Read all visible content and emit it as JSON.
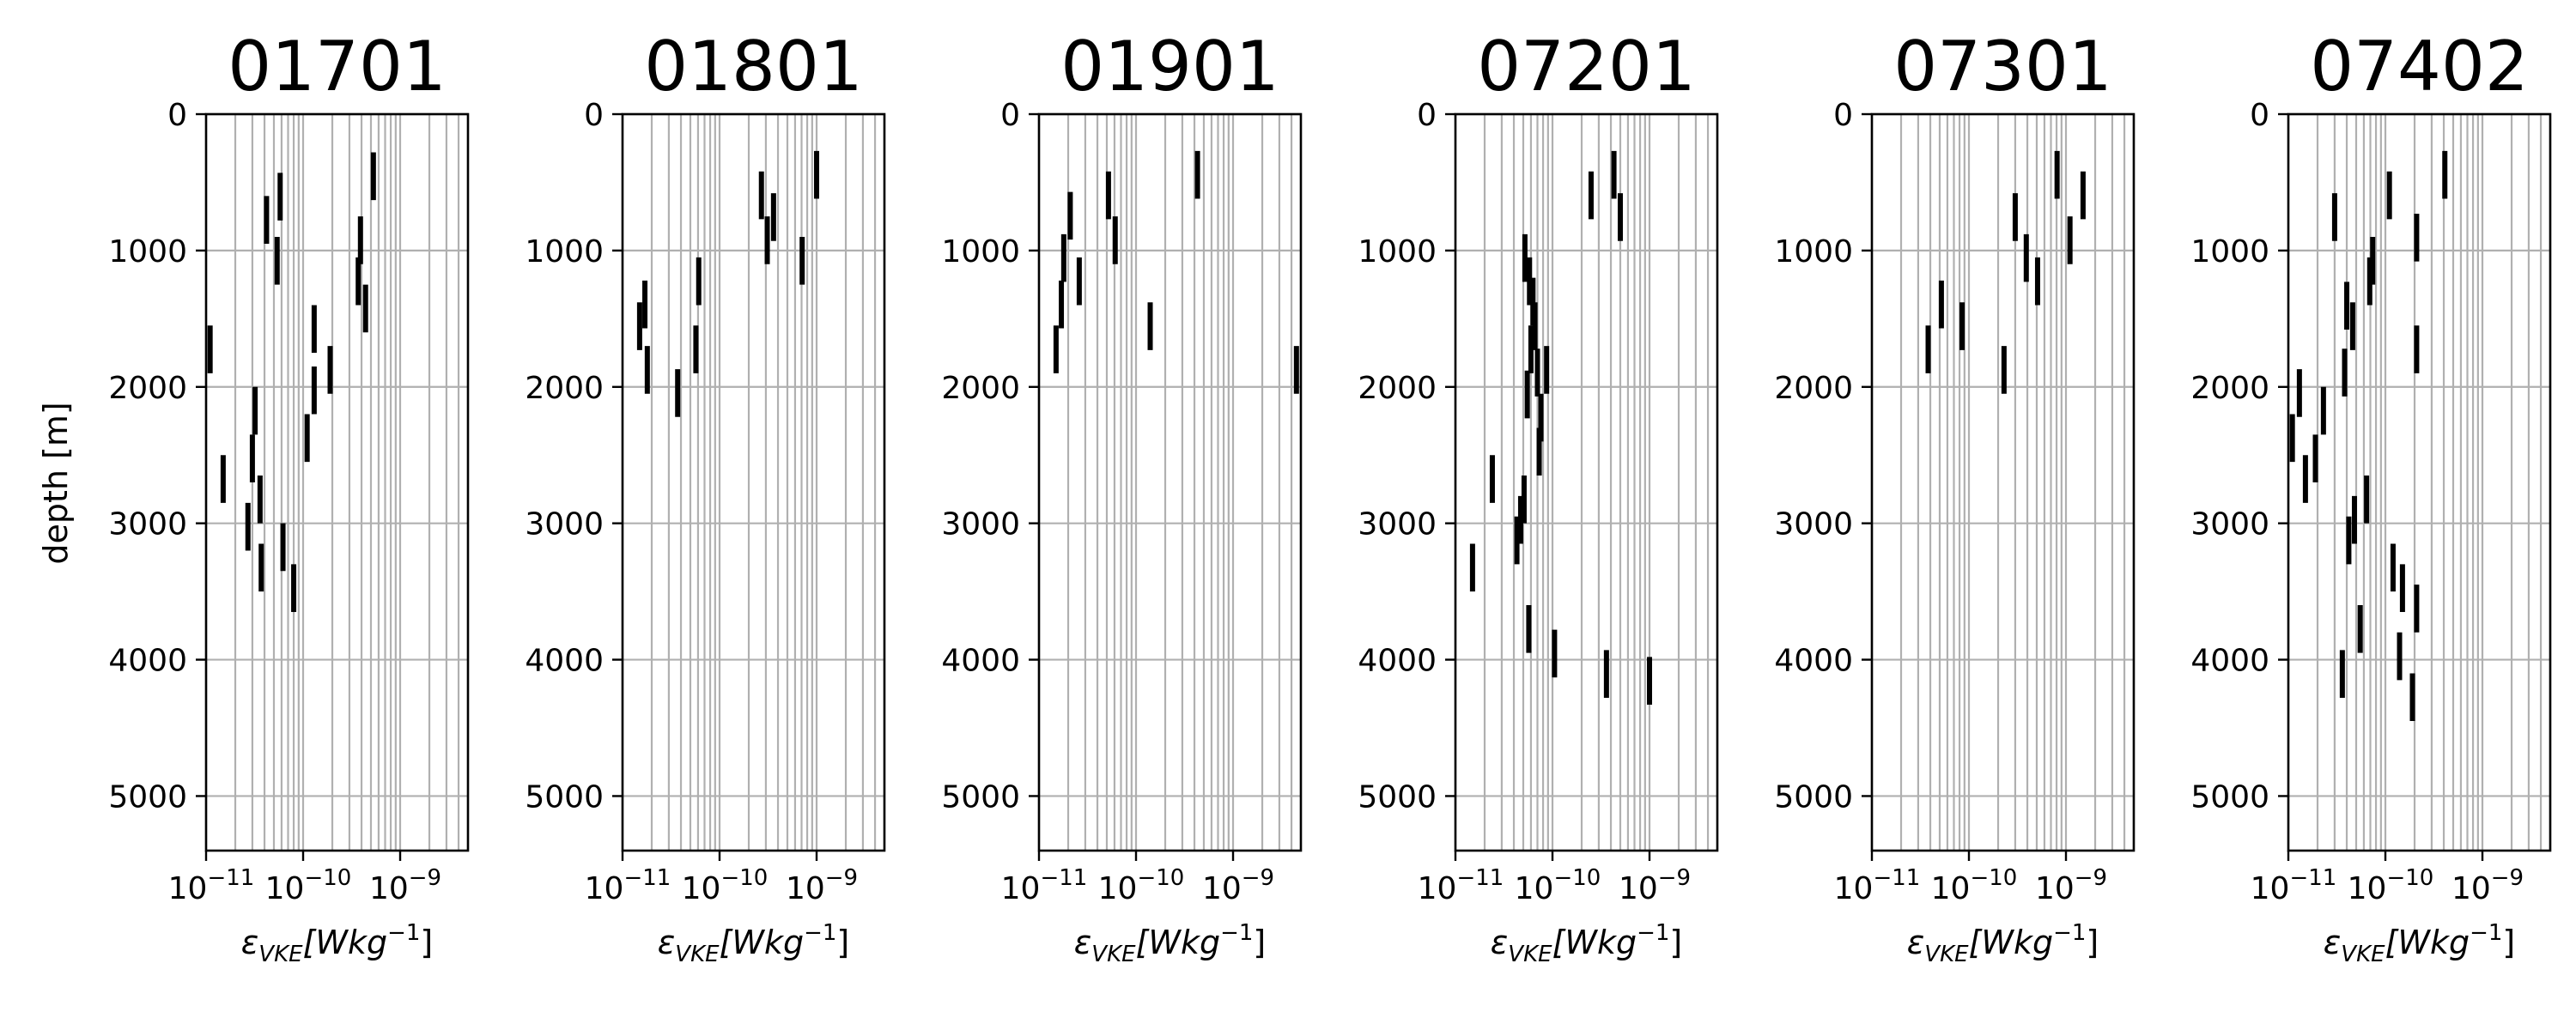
{
  "chart_data": [
    {
      "type": "scatter",
      "title": "01701",
      "ylabel": "depth [m]",
      "xlabel_base": "ε",
      "xlabel_sub": "VKE",
      "xlabel_unit": "[Wkg",
      "xlabel_exp": "−1",
      "xlabel_close": "]",
      "xscale": "log",
      "xlim": [
        1e-11,
        5e-09
      ],
      "ylim": [
        5400,
        0
      ],
      "xticks": [
        {
          "base": "10",
          "exp": "−11"
        },
        {
          "base": "10",
          "exp": "−10"
        },
        {
          "base": "10",
          "exp": "−9"
        }
      ],
      "yticks": [
        "0",
        "1000",
        "2000",
        "3000",
        "4000",
        "5000"
      ],
      "grid": true,
      "segments": [
        {
          "x": 1.1e-11,
          "y0": 1550,
          "y1": 1900
        },
        {
          "x": 1.5e-11,
          "y0": 2500,
          "y1": 2850
        },
        {
          "x": 2.7e-11,
          "y0": 2850,
          "y1": 3200
        },
        {
          "x": 3e-11,
          "y0": 2350,
          "y1": 2700
        },
        {
          "x": 3.2e-11,
          "y0": 2000,
          "y1": 2350
        },
        {
          "x": 3.6e-11,
          "y0": 2650,
          "y1": 3000
        },
        {
          "x": 3.7e-11,
          "y0": 3150,
          "y1": 3500
        },
        {
          "x": 4.2e-11,
          "y0": 600,
          "y1": 950
        },
        {
          "x": 5.4e-11,
          "y0": 900,
          "y1": 1250
        },
        {
          "x": 5.8e-11,
          "y0": 430,
          "y1": 780
        },
        {
          "x": 6.2e-11,
          "y0": 3000,
          "y1": 3350
        },
        {
          "x": 8e-11,
          "y0": 3300,
          "y1": 3650
        },
        {
          "x": 1.1e-10,
          "y0": 2200,
          "y1": 2550
        },
        {
          "x": 1.3e-10,
          "y0": 1400,
          "y1": 1750
        },
        {
          "x": 1.3e-10,
          "y0": 1850,
          "y1": 2200
        },
        {
          "x": 1.9e-10,
          "y0": 1700,
          "y1": 2050
        },
        {
          "x": 3.7e-10,
          "y0": 1050,
          "y1": 1400
        },
        {
          "x": 3.9e-10,
          "y0": 750,
          "y1": 1100
        },
        {
          "x": 4.4e-10,
          "y0": 1250,
          "y1": 1600
        },
        {
          "x": 5.3e-10,
          "y0": 280,
          "y1": 630
        }
      ]
    },
    {
      "type": "scatter",
      "title": "01801",
      "xscale": "log",
      "xlim": [
        1e-11,
        5e-09
      ],
      "ylim": [
        5400,
        0
      ],
      "segments": [
        {
          "x": 1.5e-11,
          "y0": 1380,
          "y1": 1730
        },
        {
          "x": 1.7e-11,
          "y0": 1220,
          "y1": 1570
        },
        {
          "x": 1.8e-11,
          "y0": 1700,
          "y1": 2050
        },
        {
          "x": 3.7e-11,
          "y0": 1870,
          "y1": 2220
        },
        {
          "x": 5.7e-11,
          "y0": 1550,
          "y1": 1900
        },
        {
          "x": 6.1e-11,
          "y0": 1050,
          "y1": 1400
        },
        {
          "x": 2.7e-10,
          "y0": 420,
          "y1": 770
        },
        {
          "x": 3.1e-10,
          "y0": 750,
          "y1": 1100
        },
        {
          "x": 3.6e-10,
          "y0": 580,
          "y1": 930
        },
        {
          "x": 7.1e-10,
          "y0": 900,
          "y1": 1250
        },
        {
          "x": 1e-09,
          "y0": 270,
          "y1": 620
        }
      ]
    },
    {
      "type": "scatter",
      "title": "01901",
      "xscale": "log",
      "xlim": [
        1e-11,
        5e-09
      ],
      "ylim": [
        5400,
        0
      ],
      "segments": [
        {
          "x": 1.5e-11,
          "y0": 1550,
          "y1": 1900
        },
        {
          "x": 1.7e-11,
          "y0": 1220,
          "y1": 1570
        },
        {
          "x": 1.8e-11,
          "y0": 880,
          "y1": 1230
        },
        {
          "x": 2.1e-11,
          "y0": 570,
          "y1": 920
        },
        {
          "x": 2.6e-11,
          "y0": 1050,
          "y1": 1400
        },
        {
          "x": 5.2e-11,
          "y0": 420,
          "y1": 770
        },
        {
          "x": 6.1e-11,
          "y0": 750,
          "y1": 1100
        },
        {
          "x": 1.4e-10,
          "y0": 1380,
          "y1": 1730
        },
        {
          "x": 4.3e-10,
          "y0": 270,
          "y1": 620
        },
        {
          "x": 4.5e-09,
          "y0": 1700,
          "y1": 2050
        }
      ]
    },
    {
      "type": "scatter",
      "title": "07201",
      "xscale": "log",
      "xlim": [
        1e-11,
        5e-09
      ],
      "ylim": [
        5400,
        0
      ],
      "segments": [
        {
          "x": 1.5e-11,
          "y0": 3150,
          "y1": 3500
        },
        {
          "x": 2.4e-11,
          "y0": 2500,
          "y1": 2850
        },
        {
          "x": 4.3e-11,
          "y0": 2950,
          "y1": 3300
        },
        {
          "x": 4.7e-11,
          "y0": 2800,
          "y1": 3150
        },
        {
          "x": 5.1e-11,
          "y0": 2650,
          "y1": 3000
        },
        {
          "x": 5.2e-11,
          "y0": 880,
          "y1": 1230
        },
        {
          "x": 5.5e-11,
          "y0": 1880,
          "y1": 2230
        },
        {
          "x": 5.7e-11,
          "y0": 3600,
          "y1": 3950
        },
        {
          "x": 5.8e-11,
          "y0": 1050,
          "y1": 1400
        },
        {
          "x": 6e-11,
          "y0": 1550,
          "y1": 1900
        },
        {
          "x": 6.3e-11,
          "y0": 1200,
          "y1": 1550
        },
        {
          "x": 6.6e-11,
          "y0": 1380,
          "y1": 1730
        },
        {
          "x": 7e-11,
          "y0": 1720,
          "y1": 2070
        },
        {
          "x": 7.3e-11,
          "y0": 2300,
          "y1": 2650
        },
        {
          "x": 7.6e-11,
          "y0": 2050,
          "y1": 2400
        },
        {
          "x": 8.7e-11,
          "y0": 1700,
          "y1": 2050
        },
        {
          "x": 1.05e-10,
          "y0": 3780,
          "y1": 4130
        },
        {
          "x": 2.5e-10,
          "y0": 420,
          "y1": 770
        },
        {
          "x": 3.6e-10,
          "y0": 3930,
          "y1": 4280
        },
        {
          "x": 4.3e-10,
          "y0": 270,
          "y1": 620
        },
        {
          "x": 5e-10,
          "y0": 580,
          "y1": 930
        },
        {
          "x": 1e-09,
          "y0": 3980,
          "y1": 4330
        }
      ]
    },
    {
      "type": "scatter",
      "title": "07301",
      "xscale": "log",
      "xlim": [
        1e-11,
        5e-09
      ],
      "ylim": [
        5400,
        0
      ],
      "segments": [
        {
          "x": 3.8e-11,
          "y0": 1550,
          "y1": 1900
        },
        {
          "x": 5.2e-11,
          "y0": 1220,
          "y1": 1570
        },
        {
          "x": 8.5e-11,
          "y0": 1380,
          "y1": 1730
        },
        {
          "x": 2.3e-10,
          "y0": 1700,
          "y1": 2050
        },
        {
          "x": 3e-10,
          "y0": 580,
          "y1": 930
        },
        {
          "x": 3.9e-10,
          "y0": 880,
          "y1": 1230
        },
        {
          "x": 5.1e-10,
          "y0": 1050,
          "y1": 1400
        },
        {
          "x": 8.1e-10,
          "y0": 270,
          "y1": 620
        },
        {
          "x": 1.1e-09,
          "y0": 750,
          "y1": 1100
        },
        {
          "x": 1.5e-09,
          "y0": 420,
          "y1": 770
        }
      ]
    },
    {
      "type": "scatter",
      "title": "07402",
      "xscale": "log",
      "xlim": [
        1e-11,
        5e-09
      ],
      "ylim": [
        5400,
        0
      ],
      "segments": [
        {
          "x": 1.1e-11,
          "y0": 2200,
          "y1": 2550
        },
        {
          "x": 1.3e-11,
          "y0": 1870,
          "y1": 2220
        },
        {
          "x": 1.5e-11,
          "y0": 2500,
          "y1": 2850
        },
        {
          "x": 1.9e-11,
          "y0": 2350,
          "y1": 2700
        },
        {
          "x": 2.3e-11,
          "y0": 2000,
          "y1": 2350
        },
        {
          "x": 3e-11,
          "y0": 580,
          "y1": 930
        },
        {
          "x": 3.6e-11,
          "y0": 3930,
          "y1": 4280
        },
        {
          "x": 3.8e-11,
          "y0": 1720,
          "y1": 2070
        },
        {
          "x": 4e-11,
          "y0": 1230,
          "y1": 1580
        },
        {
          "x": 4.2e-11,
          "y0": 2950,
          "y1": 3300
        },
        {
          "x": 4.6e-11,
          "y0": 1380,
          "y1": 1730
        },
        {
          "x": 4.8e-11,
          "y0": 2800,
          "y1": 3150
        },
        {
          "x": 5.5e-11,
          "y0": 3600,
          "y1": 3950
        },
        {
          "x": 6.4e-11,
          "y0": 2650,
          "y1": 3000
        },
        {
          "x": 6.9e-11,
          "y0": 1050,
          "y1": 1400
        },
        {
          "x": 7.4e-11,
          "y0": 900,
          "y1": 1250
        },
        {
          "x": 1.1e-10,
          "y0": 420,
          "y1": 770
        },
        {
          "x": 1.2e-10,
          "y0": 3150,
          "y1": 3500
        },
        {
          "x": 1.4e-10,
          "y0": 3800,
          "y1": 4150
        },
        {
          "x": 1.5e-10,
          "y0": 3300,
          "y1": 3650
        },
        {
          "x": 1.9e-10,
          "y0": 4100,
          "y1": 4450
        },
        {
          "x": 2.1e-10,
          "y0": 3450,
          "y1": 3800
        },
        {
          "x": 2.1e-10,
          "y0": 1550,
          "y1": 1900
        },
        {
          "x": 2.1e-10,
          "y0": 730,
          "y1": 1080
        },
        {
          "x": 4.1e-10,
          "y0": 270,
          "y1": 620
        }
      ]
    }
  ]
}
